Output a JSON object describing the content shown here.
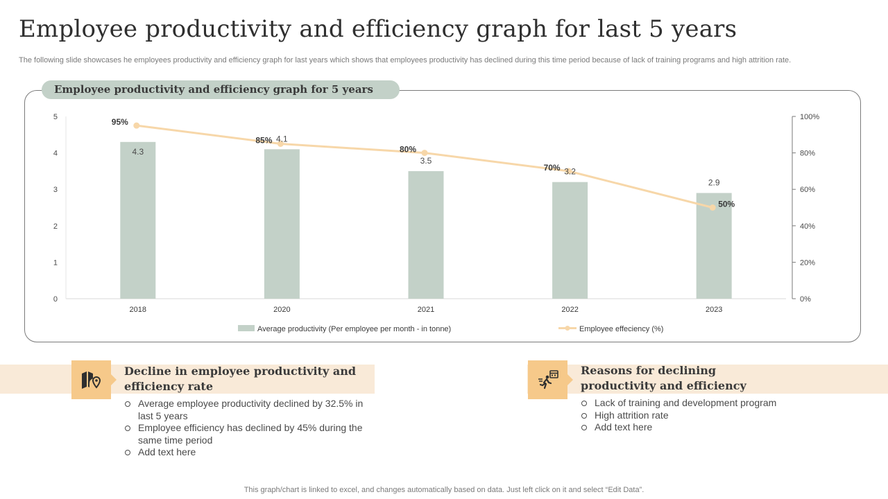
{
  "title": "Employee productivity and efficiency graph for last 5 years",
  "subtitle": "The following slide showcases he employees productivity and efficiency graph for last years which shows that employees productivity has declined during this time period because of lack of training programs and high attrition rate.",
  "chart_title": "Employee productivity and efficiency graph for 5 years",
  "chart_data": {
    "type": "bar",
    "categories": [
      "2018",
      "2020",
      "2021",
      "2022",
      "2023"
    ],
    "series": [
      {
        "name": "Average productivity (Per employee per month - in tonne)",
        "type": "bar",
        "axis": "left",
        "values": [
          4.3,
          4.1,
          3.5,
          3.2,
          2.9
        ],
        "labels": [
          "4.3",
          "4.1",
          "3.5",
          "3.2",
          "2.9"
        ]
      },
      {
        "name": "Employee effeciency (%)",
        "type": "line",
        "axis": "right",
        "values": [
          95,
          85,
          80,
          70,
          50
        ],
        "labels": [
          "95%",
          "85%",
          "80%",
          "70%",
          "50%"
        ]
      }
    ],
    "y_left": {
      "min": 0,
      "max": 5,
      "ticks": [
        "0",
        "1",
        "2",
        "3",
        "4",
        "5"
      ]
    },
    "y_right": {
      "min": 0,
      "max": 100,
      "ticks": [
        "0%",
        "20%",
        "40%",
        "60%",
        "80%",
        "100%"
      ]
    },
    "legend_position": "bottom",
    "colors": {
      "bar": "#c3d1c8",
      "line": "#f7d7a9"
    }
  },
  "left_section": {
    "title_line1": "Decline in employee productivity and",
    "title_line2": "efficiency rate",
    "icon": "map-location-icon",
    "points": [
      {
        "line1": "Average employee productivity declined by 32.5% in",
        "line2": "last 5 years"
      },
      {
        "line1": "Employee  efficiency has declined by 45% during the",
        "line2": "same time period"
      },
      {
        "line1": "Add text here",
        "line2": ""
      }
    ]
  },
  "right_section": {
    "title_line1": "Reasons for declining",
    "title_line2": "productivity and efficiency",
    "icon": "running-deadline-icon",
    "points": [
      {
        "line1": "Lack of training and development program"
      },
      {
        "line1": "High attrition rate"
      },
      {
        "line1": "Add text here"
      }
    ]
  },
  "footer": "This graph/chart is linked to excel,  and changes automatically based on data. Just left click on it and select “Edit Data”.",
  "colors": {
    "accent": "#f6c98a",
    "band": "#f9ead8",
    "pill": "#c3d1c8",
    "text": "#3a3a3a"
  }
}
